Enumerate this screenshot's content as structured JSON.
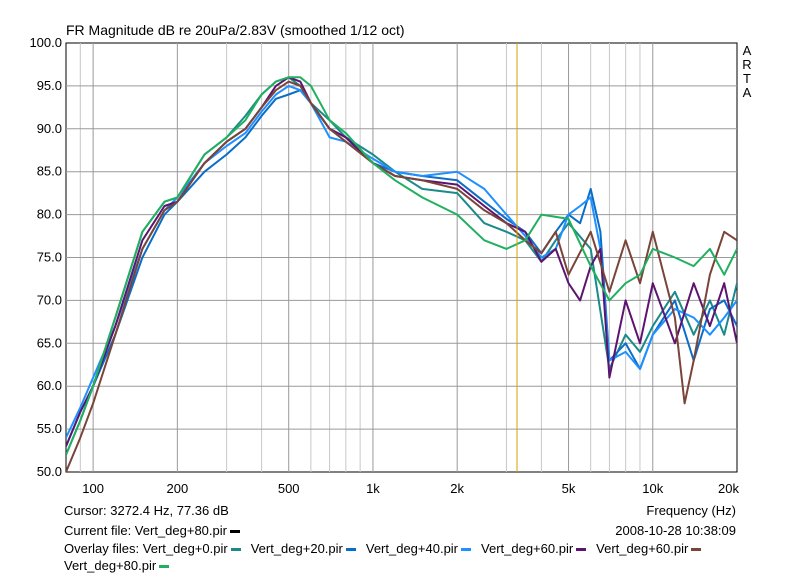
{
  "chart_data": {
    "type": "line",
    "title": "FR Magnitude dB re 20uPa/2.83V (smoothed 1/12 oct)",
    "brand_letters": [
      "A",
      "R",
      "T",
      "A"
    ],
    "xlabel": "Frequency (Hz)",
    "xscale": "log",
    "xlim": [
      80,
      20000
    ],
    "ylim": [
      50,
      100
    ],
    "grid": true,
    "x_ticks": [
      {
        "v": 100,
        "label": "100"
      },
      {
        "v": 200,
        "label": "200"
      },
      {
        "v": 500,
        "label": "500"
      },
      {
        "v": 1000,
        "label": "1k"
      },
      {
        "v": 2000,
        "label": "2k"
      },
      {
        "v": 5000,
        "label": "5k"
      },
      {
        "v": 10000,
        "label": "10k"
      },
      {
        "v": 20000,
        "label": "20k"
      }
    ],
    "y_ticks": [
      {
        "v": 100,
        "label": "100.0"
      },
      {
        "v": 95,
        "label": "95.0"
      },
      {
        "v": 90,
        "label": "90.0"
      },
      {
        "v": 85,
        "label": "85.0"
      },
      {
        "v": 80,
        "label": "80.0"
      },
      {
        "v": 75,
        "label": "75.0"
      },
      {
        "v": 70,
        "label": "70.0"
      },
      {
        "v": 65,
        "label": "65.0"
      },
      {
        "v": 60,
        "label": "60.0"
      },
      {
        "v": 55,
        "label": "55.0"
      },
      {
        "v": 50,
        "label": "50.0"
      }
    ],
    "cursor_freq": 3272.4,
    "series": [
      {
        "name": "Vert_deg+0.pir",
        "color": "#1b8a8a",
        "points": [
          [
            80,
            52
          ],
          [
            90,
            56
          ],
          [
            100,
            60
          ],
          [
            120,
            68
          ],
          [
            150,
            78
          ],
          [
            180,
            81.5
          ],
          [
            200,
            82
          ],
          [
            250,
            87
          ],
          [
            300,
            89
          ],
          [
            350,
            91.5
          ],
          [
            400,
            94
          ],
          [
            450,
            95.5
          ],
          [
            500,
            96
          ],
          [
            550,
            95
          ],
          [
            600,
            93
          ],
          [
            700,
            91
          ],
          [
            800,
            89
          ],
          [
            1000,
            87
          ],
          [
            1200,
            85
          ],
          [
            1500,
            83
          ],
          [
            2000,
            82.5
          ],
          [
            2500,
            79
          ],
          [
            3000,
            78
          ],
          [
            3500,
            77
          ],
          [
            4000,
            74.5
          ],
          [
            4500,
            77
          ],
          [
            5000,
            79
          ],
          [
            6000,
            76
          ],
          [
            7000,
            62
          ],
          [
            8000,
            66
          ],
          [
            9000,
            64
          ],
          [
            10000,
            67
          ],
          [
            12000,
            71
          ],
          [
            14000,
            66
          ],
          [
            16000,
            70
          ],
          [
            18000,
            66
          ],
          [
            20000,
            72
          ]
        ]
      },
      {
        "name": "Vert_deg+20.pir",
        "color": "#0a6ec8",
        "points": [
          [
            80,
            53
          ],
          [
            90,
            57
          ],
          [
            100,
            60
          ],
          [
            120,
            66
          ],
          [
            150,
            75
          ],
          [
            180,
            80
          ],
          [
            200,
            81.5
          ],
          [
            250,
            85
          ],
          [
            300,
            87
          ],
          [
            350,
            89
          ],
          [
            400,
            91.5
          ],
          [
            450,
            93.5
          ],
          [
            500,
            94
          ],
          [
            550,
            94.5
          ],
          [
            600,
            93
          ],
          [
            700,
            90
          ],
          [
            800,
            89
          ],
          [
            1000,
            86
          ],
          [
            1200,
            85
          ],
          [
            1500,
            84.5
          ],
          [
            2000,
            84
          ],
          [
            2500,
            81.5
          ],
          [
            3000,
            79.5
          ],
          [
            3500,
            78
          ],
          [
            4000,
            75.5
          ],
          [
            4500,
            78
          ],
          [
            5000,
            80
          ],
          [
            5500,
            79
          ],
          [
            6000,
            83
          ],
          [
            6500,
            78
          ],
          [
            7000,
            63
          ],
          [
            8000,
            65
          ],
          [
            9000,
            62
          ],
          [
            10000,
            66
          ],
          [
            12000,
            70
          ],
          [
            14000,
            63
          ],
          [
            16000,
            69
          ],
          [
            18000,
            70
          ],
          [
            20000,
            67
          ]
        ]
      },
      {
        "name": "Vert_deg+40.pir",
        "color": "#1e90ff",
        "points": [
          [
            80,
            54
          ],
          [
            90,
            57.5
          ],
          [
            100,
            61
          ],
          [
            120,
            67
          ],
          [
            150,
            76
          ],
          [
            180,
            80.5
          ],
          [
            200,
            82
          ],
          [
            250,
            86
          ],
          [
            300,
            88
          ],
          [
            350,
            89.5
          ],
          [
            400,
            92
          ],
          [
            450,
            94
          ],
          [
            500,
            95
          ],
          [
            550,
            94.5
          ],
          [
            600,
            93
          ],
          [
            700,
            89
          ],
          [
            800,
            88.5
          ],
          [
            1000,
            86.5
          ],
          [
            1200,
            85
          ],
          [
            1500,
            84.5
          ],
          [
            2000,
            85
          ],
          [
            2500,
            83
          ],
          [
            3000,
            80
          ],
          [
            3500,
            77.5
          ],
          [
            4000,
            75
          ],
          [
            4500,
            76
          ],
          [
            5000,
            80
          ],
          [
            5500,
            81
          ],
          [
            6000,
            82
          ],
          [
            6500,
            76
          ],
          [
            7000,
            63
          ],
          [
            8000,
            64
          ],
          [
            9000,
            62
          ],
          [
            10000,
            66
          ],
          [
            12000,
            69
          ],
          [
            14000,
            68
          ],
          [
            16000,
            66
          ],
          [
            18000,
            68
          ],
          [
            20000,
            70
          ]
        ]
      },
      {
        "name": "Vert_deg+60.pir",
        "color": "#5c1470",
        "points": [
          [
            80,
            53
          ],
          [
            90,
            57
          ],
          [
            100,
            60
          ],
          [
            120,
            67
          ],
          [
            150,
            77
          ],
          [
            180,
            81
          ],
          [
            200,
            81.5
          ],
          [
            250,
            86
          ],
          [
            300,
            88.5
          ],
          [
            350,
            90
          ],
          [
            400,
            92.5
          ],
          [
            450,
            95
          ],
          [
            500,
            96
          ],
          [
            550,
            95.5
          ],
          [
            600,
            93
          ],
          [
            700,
            90
          ],
          [
            800,
            89
          ],
          [
            1000,
            86
          ],
          [
            1200,
            84.5
          ],
          [
            1500,
            84
          ],
          [
            2000,
            83.5
          ],
          [
            2500,
            81
          ],
          [
            3000,
            79
          ],
          [
            3500,
            78
          ],
          [
            4000,
            74.5
          ],
          [
            4500,
            76
          ],
          [
            5000,
            72
          ],
          [
            5500,
            70
          ],
          [
            6000,
            74
          ],
          [
            6500,
            76
          ],
          [
            7000,
            61
          ],
          [
            8000,
            70
          ],
          [
            9000,
            65
          ],
          [
            10000,
            72
          ],
          [
            12000,
            65
          ],
          [
            14000,
            72
          ],
          [
            16000,
            67
          ],
          [
            18000,
            72
          ],
          [
            20000,
            65
          ]
        ]
      },
      {
        "name": "Vert_deg+60.pir",
        "color": "#7a4438",
        "points": [
          [
            80,
            50
          ],
          [
            90,
            54
          ],
          [
            100,
            58
          ],
          [
            120,
            66
          ],
          [
            150,
            76
          ],
          [
            180,
            80.5
          ],
          [
            200,
            81.5
          ],
          [
            250,
            86
          ],
          [
            300,
            88.5
          ],
          [
            350,
            90
          ],
          [
            400,
            92.5
          ],
          [
            450,
            94.5
          ],
          [
            500,
            95.5
          ],
          [
            550,
            95
          ],
          [
            600,
            93
          ],
          [
            700,
            90
          ],
          [
            800,
            88.5
          ],
          [
            1000,
            86
          ],
          [
            1200,
            84.5
          ],
          [
            1500,
            84
          ],
          [
            2000,
            83
          ],
          [
            2500,
            80.5
          ],
          [
            3000,
            79
          ],
          [
            3500,
            77
          ],
          [
            4000,
            75.5
          ],
          [
            4500,
            78
          ],
          [
            5000,
            73
          ],
          [
            6000,
            78
          ],
          [
            7000,
            71
          ],
          [
            8000,
            77
          ],
          [
            9000,
            72
          ],
          [
            10000,
            78
          ],
          [
            12000,
            68
          ],
          [
            13000,
            58
          ],
          [
            14000,
            63
          ],
          [
            16000,
            73
          ],
          [
            18000,
            78
          ],
          [
            20000,
            77
          ]
        ]
      },
      {
        "name": "Vert_deg+80.pir",
        "color": "#20b060",
        "points": [
          [
            80,
            52
          ],
          [
            90,
            56
          ],
          [
            100,
            60
          ],
          [
            120,
            68
          ],
          [
            150,
            78
          ],
          [
            180,
            81.5
          ],
          [
            200,
            82
          ],
          [
            250,
            87
          ],
          [
            300,
            89
          ],
          [
            350,
            91
          ],
          [
            400,
            94
          ],
          [
            450,
            95.5
          ],
          [
            500,
            96
          ],
          [
            550,
            96
          ],
          [
            600,
            95
          ],
          [
            700,
            91
          ],
          [
            800,
            89.5
          ],
          [
            1000,
            86
          ],
          [
            1200,
            84
          ],
          [
            1500,
            82
          ],
          [
            2000,
            80
          ],
          [
            2500,
            77
          ],
          [
            3000,
            76
          ],
          [
            3500,
            77
          ],
          [
            4000,
            80
          ],
          [
            5000,
            79.5
          ],
          [
            6000,
            74
          ],
          [
            7000,
            70
          ],
          [
            8000,
            72
          ],
          [
            9000,
            73
          ],
          [
            10000,
            76
          ],
          [
            12000,
            75
          ],
          [
            14000,
            74
          ],
          [
            16000,
            76
          ],
          [
            18000,
            73
          ],
          [
            20000,
            76
          ]
        ]
      }
    ]
  },
  "info": {
    "cursor": "Cursor: 3272.4 Hz, 77.36 dB",
    "current_file_label": "Current file: Vert_deg+80.pir",
    "current_file_color": "#000000",
    "datetime": "2008-10-28  10:38:09",
    "overlay_label": "Overlay files:",
    "overlays": [
      {
        "label": "Vert_deg+0.pir",
        "color": "#1b8a8a"
      },
      {
        "label": "Vert_deg+20.pir",
        "color": "#0a6ec8"
      },
      {
        "label": "Vert_deg+40.pir",
        "color": "#1e90ff"
      },
      {
        "label": "Vert_deg+60.pir",
        "color": "#5c1470"
      },
      {
        "label": "Vert_deg+60.pir",
        "color": "#7a4438"
      }
    ],
    "overlay_row2": {
      "label": "Vert_deg+80.pir",
      "color": "#20b060"
    }
  }
}
